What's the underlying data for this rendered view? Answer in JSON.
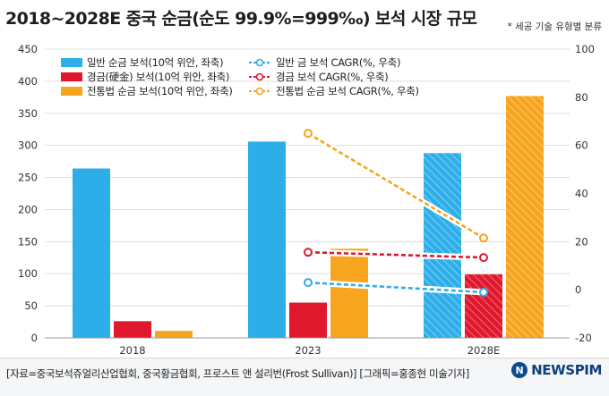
{
  "header": {
    "title": "2018~2028E 중국 순금(순도 99.9%=999‰) 보석 시장 규모",
    "note": "* 세공 기술 유형별 분류"
  },
  "footer": {
    "source": "[자료=중국보석쥬얼리산업협회, 중국황금협회, 프로스트 앤 설리번(Frost Sullivan)] [그래픽=홍종현 미술기자]",
    "brand": "NEWSPIM",
    "brand_icon": "N"
  },
  "colors": {
    "general": "#2eaee8",
    "hard": "#e0182e",
    "traditional": "#f7a41e",
    "axis": "#999999",
    "grid": "#dddddd"
  },
  "chart_data": {
    "type": "bar",
    "categories": [
      "2018",
      "2023",
      "2028E"
    ],
    "hatched_categories": [
      "2028E"
    ],
    "ylim_left": [
      0,
      450
    ],
    "yticks_left": [
      0,
      50,
      100,
      150,
      200,
      250,
      300,
      350,
      400,
      450
    ],
    "ylim_right": [
      -20,
      100
    ],
    "yticks_right": [
      -20,
      0,
      20,
      40,
      60,
      80,
      100
    ],
    "series": [
      {
        "name": "일반 순금 보석(10억 위안, 좌축)",
        "color": "#2eaee8",
        "values": [
          264,
          306,
          288
        ]
      },
      {
        "name": "경금(硬金) 보석(10억 위안, 좌축)",
        "color": "#e0182e",
        "values": [
          26,
          55,
          99
        ]
      },
      {
        "name": "전통법 순금 보석(10억 위안, 좌축)",
        "color": "#f7a41e",
        "values": [
          11,
          139,
          377
        ]
      }
    ],
    "cagr": [
      {
        "name": "일반 금 보석 CAGR(%, 우축)",
        "color": "#2eaee8",
        "from": "2023",
        "to": "2028E",
        "values": [
          3,
          -1
        ]
      },
      {
        "name": "경금 보석 CAGR(%, 우축)",
        "color": "#e0182e",
        "from": "2023",
        "to": "2028E",
        "values": [
          15.6,
          13.4
        ]
      },
      {
        "name": "전통법 순금 보석 CAGR(%, 우축)",
        "color": "#f7a41e",
        "from": "2023",
        "to": "2028E",
        "values": [
          65,
          21.5
        ]
      }
    ]
  }
}
